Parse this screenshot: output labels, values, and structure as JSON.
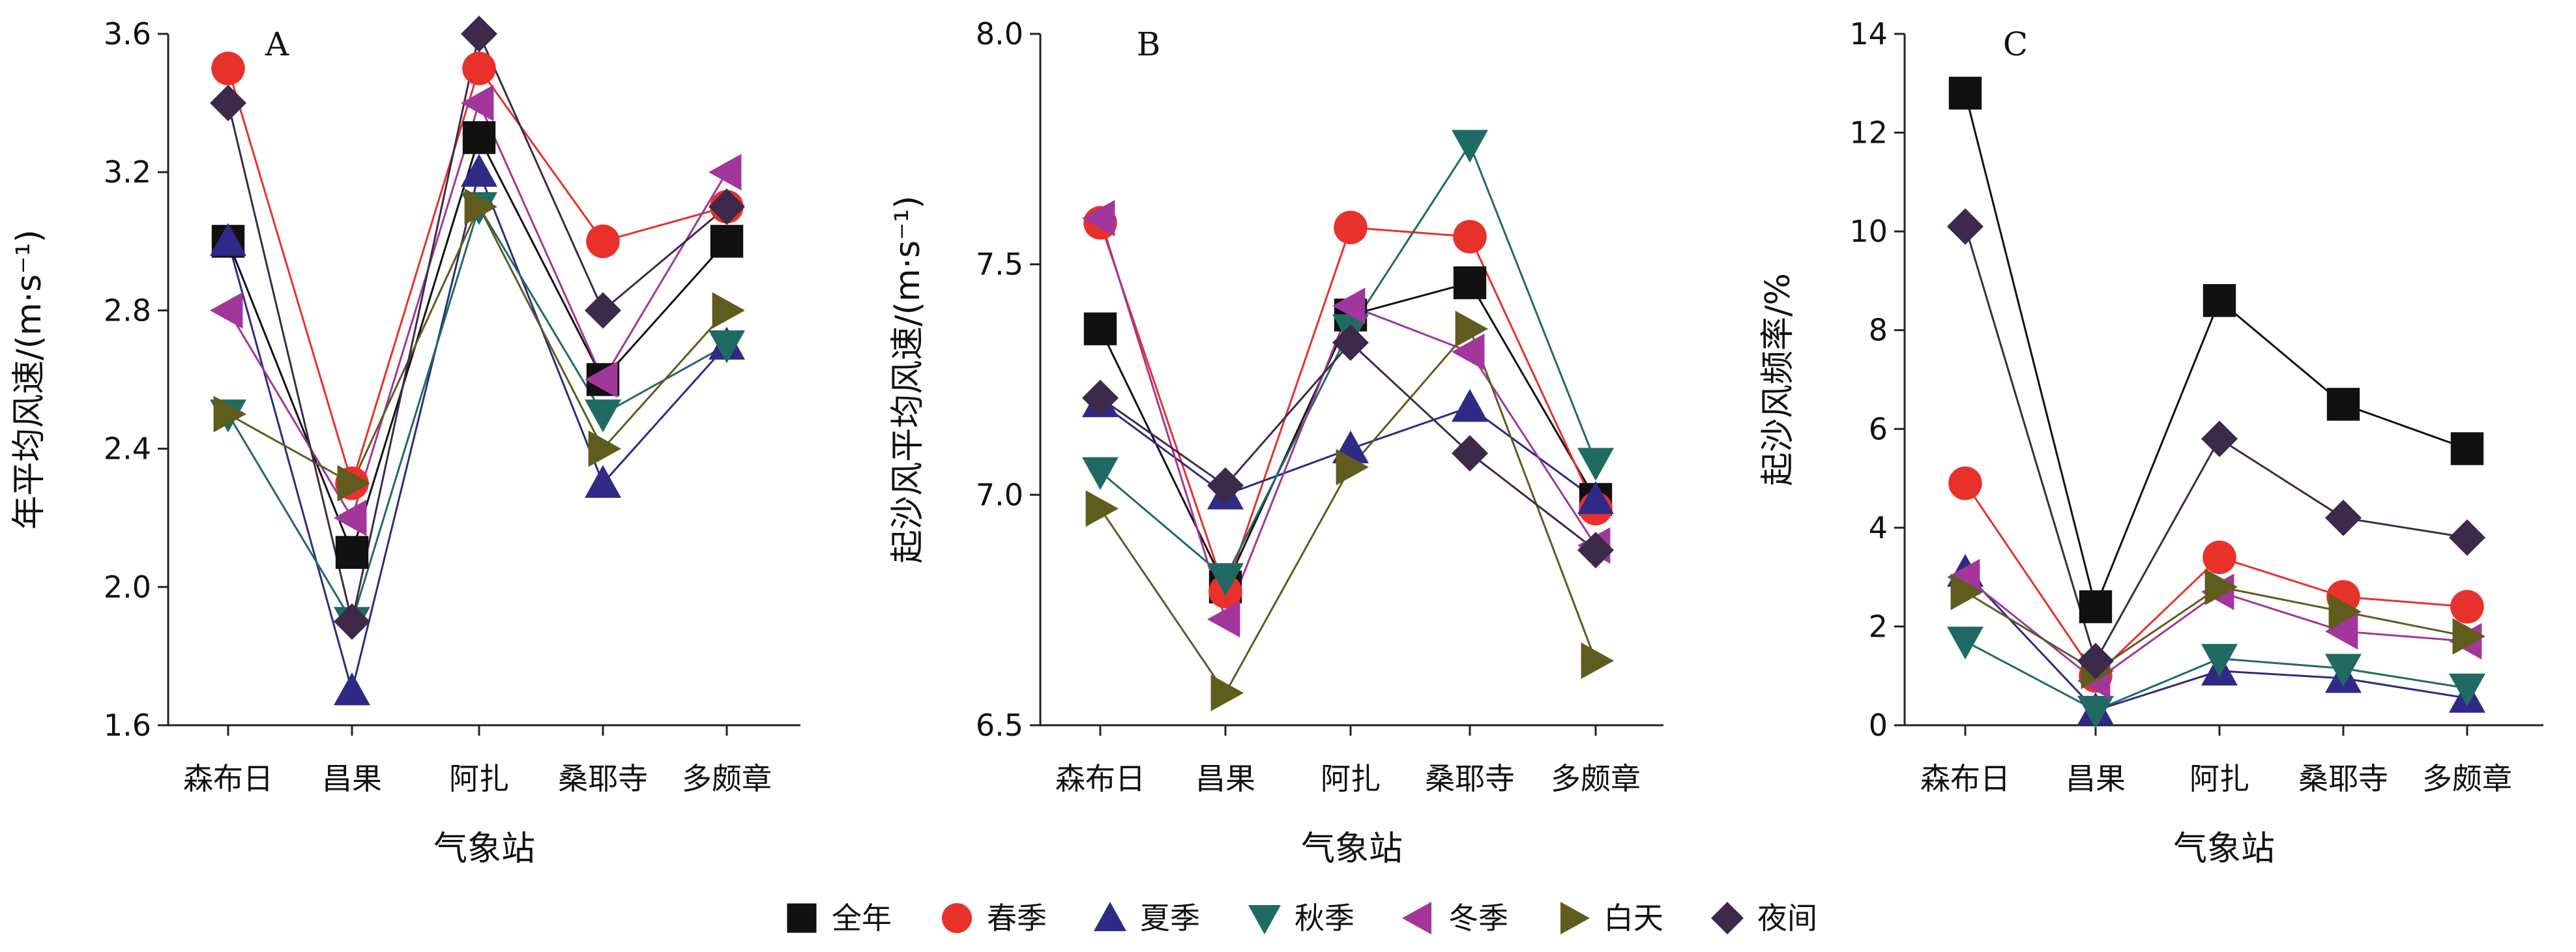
{
  "chart_data": [
    {
      "type": "line",
      "panel_label": "A",
      "title": "",
      "xlabel": "气象站",
      "ylabel": "年平均风速/(m·s⁻¹)",
      "categories": [
        "森布日",
        "昌果",
        "阿扎",
        "桑耶寺",
        "多颇章"
      ],
      "ylim": [
        1.6,
        3.6
      ],
      "yticks": [
        "1.6",
        "2.0",
        "2.4",
        "2.8",
        "3.2",
        "3.6"
      ],
      "series": [
        {
          "name": "全年",
          "values": [
            3.0,
            2.1,
            3.3,
            2.6,
            3.0
          ]
        },
        {
          "name": "春季",
          "values": [
            3.5,
            2.3,
            3.5,
            3.0,
            3.1
          ]
        },
        {
          "name": "夏季",
          "values": [
            3.0,
            1.7,
            3.2,
            2.3,
            2.7
          ]
        },
        {
          "name": "秋季",
          "values": [
            2.5,
            1.9,
            3.1,
            2.5,
            2.7
          ]
        },
        {
          "name": "冬季",
          "values": [
            2.8,
            2.2,
            3.4,
            2.6,
            3.2
          ]
        },
        {
          "name": "白天",
          "values": [
            2.5,
            2.3,
            3.1,
            2.4,
            2.8
          ]
        },
        {
          "name": "夜间",
          "values": [
            3.4,
            1.9,
            3.6,
            2.8,
            3.1
          ]
        }
      ]
    },
    {
      "type": "line",
      "panel_label": "B",
      "title": "",
      "xlabel": "气象站",
      "ylabel": "起沙风平均风速/(m·s⁻¹)",
      "categories": [
        "森布日",
        "昌果",
        "阿扎",
        "桑耶寺",
        "多颇章"
      ],
      "ylim": [
        6.5,
        8.0
      ],
      "yticks": [
        "6.5",
        "7.0",
        "7.5",
        "8.0"
      ],
      "series": [
        {
          "name": "全年",
          "values": [
            7.36,
            6.8,
            7.39,
            7.46,
            6.99
          ]
        },
        {
          "name": "春季",
          "values": [
            7.59,
            6.79,
            7.58,
            7.56,
            6.97
          ]
        },
        {
          "name": "夏季",
          "values": [
            7.2,
            7.0,
            7.1,
            7.19,
            6.99
          ]
        },
        {
          "name": "秋季",
          "values": [
            7.05,
            6.82,
            7.36,
            7.76,
            7.07
          ]
        },
        {
          "name": "冬季",
          "values": [
            7.6,
            6.73,
            7.41,
            7.31,
            6.89
          ]
        },
        {
          "name": "白天",
          "values": [
            6.97,
            6.57,
            7.06,
            7.36,
            6.64
          ]
        },
        {
          "name": "夜间",
          "values": [
            7.21,
            7.02,
            7.33,
            7.09,
            6.88
          ]
        }
      ]
    },
    {
      "type": "line",
      "panel_label": "C",
      "title": "",
      "xlabel": "气象站",
      "ylabel": "起沙风频率/%",
      "categories": [
        "森布日",
        "昌果",
        "阿扎",
        "桑耶寺",
        "多颇章"
      ],
      "ylim": [
        0,
        14
      ],
      "yticks": [
        "0",
        "2",
        "4",
        "6",
        "8",
        "10",
        "12",
        "14"
      ],
      "series": [
        {
          "name": "全年",
          "values": [
            12.8,
            2.4,
            8.6,
            6.5,
            5.6
          ]
        },
        {
          "name": "春季",
          "values": [
            4.9,
            1.0,
            3.4,
            2.6,
            2.4
          ]
        },
        {
          "name": "夏季",
          "values": [
            3.1,
            0.3,
            1.1,
            0.95,
            0.55
          ]
        },
        {
          "name": "秋季",
          "values": [
            1.7,
            0.3,
            1.35,
            1.15,
            0.75
          ]
        },
        {
          "name": "冬季",
          "values": [
            3.0,
            0.9,
            2.7,
            1.9,
            1.7
          ]
        },
        {
          "name": "白天",
          "values": [
            2.7,
            1.1,
            2.8,
            2.3,
            1.8
          ]
        },
        {
          "name": "夜间",
          "values": [
            10.1,
            1.3,
            5.8,
            4.2,
            3.8
          ]
        }
      ]
    }
  ],
  "legend": {
    "placement": "bottom",
    "entries": [
      {
        "name": "全年",
        "marker": "square",
        "color": "#111111"
      },
      {
        "name": "春季",
        "marker": "circle",
        "color": "#e8312a"
      },
      {
        "name": "夏季",
        "marker": "triangle-up",
        "color": "#2e2a86"
      },
      {
        "name": "秋季",
        "marker": "triangle-down",
        "color": "#1f6b63"
      },
      {
        "name": "冬季",
        "marker": "triangle-left",
        "color": "#a2369a"
      },
      {
        "name": "白天",
        "marker": "triangle-right",
        "color": "#5f5c1e"
      },
      {
        "name": "夜间",
        "marker": "diamond",
        "color": "#3d2a4a"
      }
    ]
  }
}
